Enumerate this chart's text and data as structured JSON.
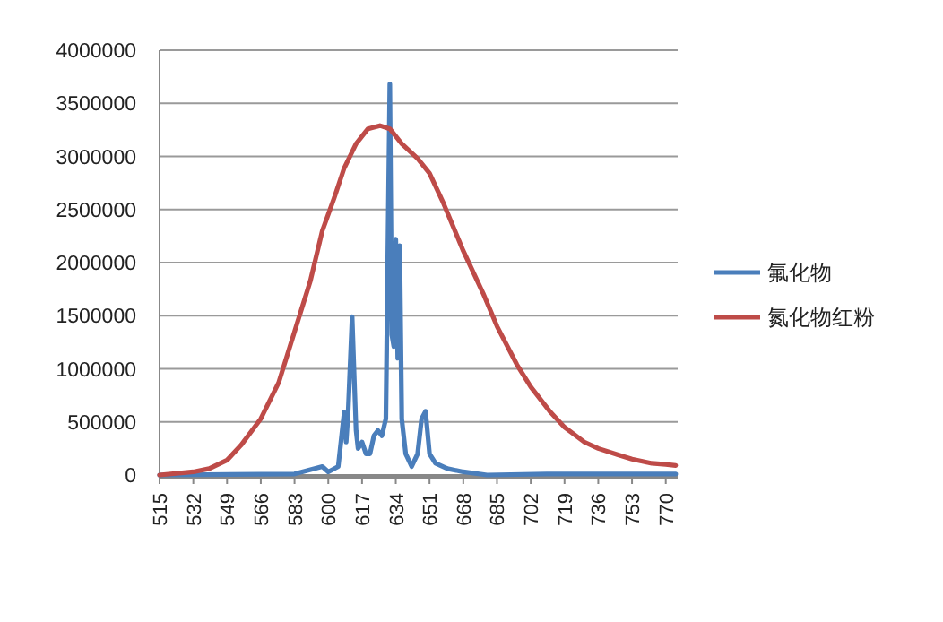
{
  "chart_data": {
    "type": "line",
    "xlim": [
      515,
      776
    ],
    "xticks": [
      515,
      532,
      549,
      566,
      583,
      600,
      617,
      634,
      651,
      668,
      685,
      702,
      719,
      736,
      753,
      770
    ],
    "ylim": [
      0,
      4000000
    ],
    "yticks": [
      0,
      500000,
      1000000,
      1500000,
      2000000,
      2500000,
      3000000,
      3500000,
      4000000
    ],
    "grid": "y",
    "legend": "right",
    "marker": "none",
    "line_style": "solid",
    "series": [
      {
        "name": "氟化物",
        "color": "#4a7ebb",
        "x": [
          515,
          583,
          597,
          600,
          605,
          608,
          609,
          610,
          612,
          614,
          615,
          617,
          619,
          621,
          623,
          625,
          627,
          629,
          631,
          632,
          633,
          634,
          635,
          636,
          637,
          639,
          642,
          645,
          647,
          649,
          651,
          654,
          660,
          668,
          680,
          710,
          775
        ],
        "values": [
          0,
          10000,
          80000,
          30000,
          80000,
          590000,
          310000,
          590000,
          1490000,
          420000,
          250000,
          310000,
          200000,
          200000,
          370000,
          420000,
          370000,
          530000,
          3680000,
          1320000,
          1210000,
          2220000,
          1100000,
          2160000,
          530000,
          200000,
          80000,
          200000,
          530000,
          600000,
          200000,
          110000,
          60000,
          30000,
          0,
          10000,
          10000
        ]
      },
      {
        "name": "氮化物红粉",
        "color": "#be4b48",
        "x": [
          515,
          532,
          540,
          549,
          556,
          566,
          575,
          583,
          591,
          597,
          603,
          608,
          614,
          620,
          626,
          631,
          637,
          645,
          651,
          658,
          668,
          678,
          685,
          695,
          702,
          712,
          719,
          729,
          736,
          746,
          753,
          763,
          770,
          775
        ],
        "values": [
          0,
          30000,
          60000,
          140000,
          280000,
          530000,
          870000,
          1350000,
          1830000,
          2300000,
          2610000,
          2890000,
          3120000,
          3260000,
          3290000,
          3260000,
          3120000,
          2980000,
          2840000,
          2560000,
          2110000,
          1710000,
          1400000,
          1040000,
          830000,
          590000,
          450000,
          310000,
          250000,
          190000,
          150000,
          110000,
          100000,
          90000
        ]
      }
    ]
  }
}
